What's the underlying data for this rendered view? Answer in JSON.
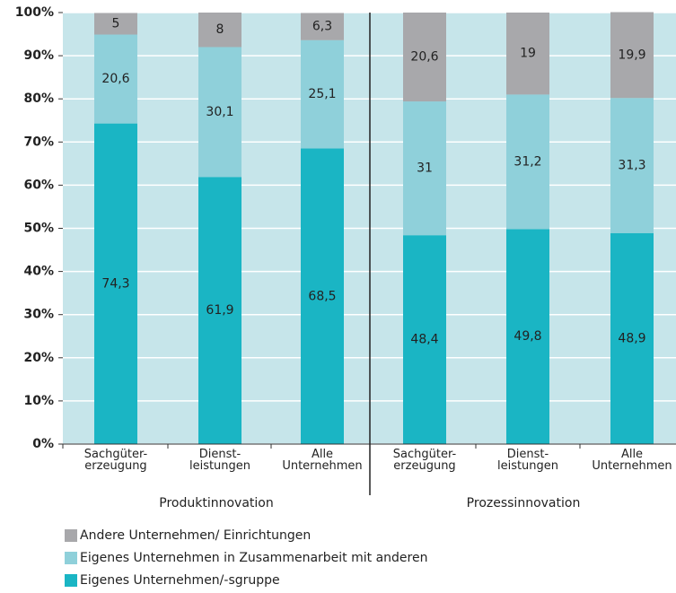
{
  "chart_data": {
    "type": "stacked_bar",
    "categories": [
      "Sachgüter-\nerzeugung",
      "Dienst-\nleistungen",
      "Alle\nUnternehmen",
      "Sachgüter-\nerzeugung",
      "Dienst-\nleistungen",
      "Alle\nUnternehmen"
    ],
    "groups": [
      "Produktinnovation",
      "Prozessinnovation"
    ],
    "series": [
      {
        "name": "Eigenes Unternehmen/-sgruppe",
        "color": "#1ab5c4",
        "values": [
          74.3,
          61.9,
          68.5,
          48.4,
          49.8,
          48.9
        ],
        "value_labels": [
          "74,3",
          "61,9",
          "68,5",
          "48,4",
          "49,8",
          "48,9"
        ]
      },
      {
        "name": "Eigenes Unternehmen in Zusammenarbeit mit anderen",
        "color": "#8fd0da",
        "values": [
          20.6,
          30.1,
          25.1,
          31,
          31.2,
          31.3
        ],
        "value_labels": [
          "20,6",
          "30,1",
          "25,1",
          "31",
          "31,2",
          "31,3"
        ]
      },
      {
        "name": "Andere Unternehmen/ Einrichtungen",
        "color": "#a8a8ab",
        "values": [
          5,
          8,
          6.3,
          20.6,
          19,
          19.9
        ],
        "value_labels": [
          "5",
          "8",
          "6,3",
          "20,6",
          "19",
          "19,9"
        ]
      }
    ],
    "ylim": [
      0,
      100
    ],
    "yticks": [
      {
        "value": 0,
        "label": "0%"
      },
      {
        "value": 10,
        "label": "10%"
      },
      {
        "value": 20,
        "label": "20%"
      },
      {
        "value": 30,
        "label": "30%"
      },
      {
        "value": 40,
        "label": "40%"
      },
      {
        "value": 50,
        "label": "50%"
      },
      {
        "value": 60,
        "label": "60%"
      },
      {
        "value": 70,
        "label": "70%"
      },
      {
        "value": 80,
        "label": "80%"
      },
      {
        "value": 90,
        "label": "90%"
      },
      {
        "value": 100,
        "label": "100%"
      }
    ],
    "grid": true,
    "background": "#c6e5ea"
  }
}
